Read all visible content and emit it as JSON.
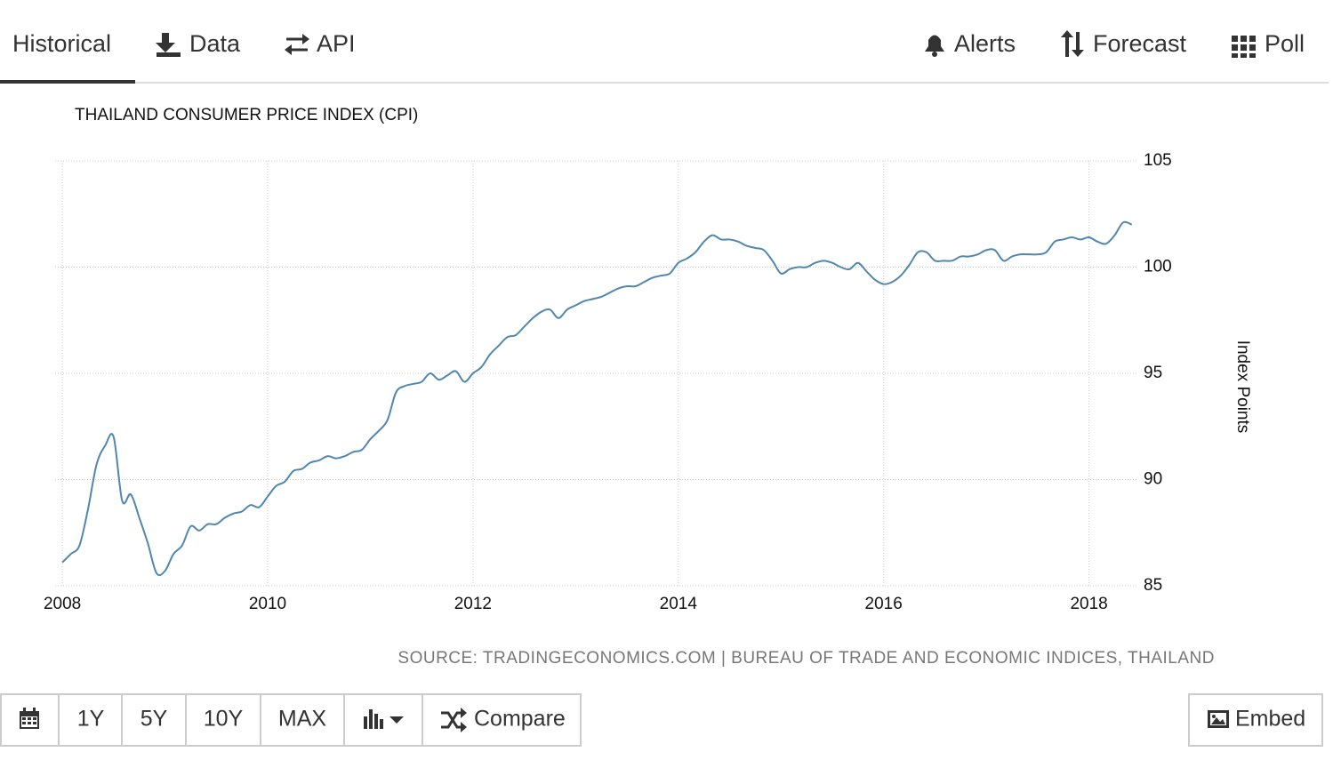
{
  "tabs": [
    "Historical",
    "Data",
    "API",
    "Alerts",
    "Forecast",
    "Poll"
  ],
  "toolbar": [
    "1Y",
    "5Y",
    "10Y",
    "MAX",
    "Compare"
  ],
  "embed": "Embed",
  "chart_data": {
    "type": "line",
    "title": "THAILAND CONSUMER PRICE INDEX (CPI)",
    "y_label": "Index Points",
    "source": "SOURCE: TRADINGECONOMICS.COM | BUREAU OF TRADE AND ECONOMIC INDICES, THAILAND",
    "color": "#4f87b0",
    "grid": true,
    "xlim": [
      2007.93,
      2018.48
    ],
    "ylim": [
      85,
      105
    ],
    "xticks": [
      2008,
      2010,
      2012,
      2014,
      2016,
      2018
    ],
    "yticks": [
      85,
      90,
      95,
      100,
      105
    ],
    "x": [
      2008.0,
      2008.083,
      2008.167,
      2008.25,
      2008.333,
      2008.417,
      2008.5,
      2008.583,
      2008.667,
      2008.75,
      2008.833,
      2008.917,
      2009.0,
      2009.083,
      2009.167,
      2009.25,
      2009.333,
      2009.417,
      2009.5,
      2009.583,
      2009.667,
      2009.75,
      2009.833,
      2009.917,
      2010.0,
      2010.083,
      2010.167,
      2010.25,
      2010.333,
      2010.417,
      2010.5,
      2010.583,
      2010.667,
      2010.75,
      2010.833,
      2010.917,
      2011.0,
      2011.083,
      2011.167,
      2011.25,
      2011.333,
      2011.417,
      2011.5,
      2011.583,
      2011.667,
      2011.75,
      2011.833,
      2011.917,
      2012.0,
      2012.083,
      2012.167,
      2012.25,
      2012.333,
      2012.417,
      2012.5,
      2012.583,
      2012.667,
      2012.75,
      2012.833,
      2012.917,
      2013.0,
      2013.083,
      2013.167,
      2013.25,
      2013.333,
      2013.417,
      2013.5,
      2013.583,
      2013.667,
      2013.75,
      2013.833,
      2013.917,
      2014.0,
      2014.083,
      2014.167,
      2014.25,
      2014.333,
      2014.417,
      2014.5,
      2014.583,
      2014.667,
      2014.75,
      2014.833,
      2014.917,
      2015.0,
      2015.083,
      2015.167,
      2015.25,
      2015.333,
      2015.417,
      2015.5,
      2015.583,
      2015.667,
      2015.75,
      2015.833,
      2015.917,
      2016.0,
      2016.083,
      2016.167,
      2016.25,
      2016.333,
      2016.417,
      2016.5,
      2016.583,
      2016.667,
      2016.75,
      2016.833,
      2016.917,
      2017.0,
      2017.083,
      2017.167,
      2017.25,
      2017.333,
      2017.417,
      2017.5,
      2017.583,
      2017.667,
      2017.75,
      2017.833,
      2017.917,
      2018.0,
      2018.083,
      2018.167,
      2018.25,
      2018.333,
      2018.417
    ],
    "values": [
      86.1,
      86.5,
      86.9,
      88.6,
      90.7,
      91.6,
      92.0,
      89.0,
      89.3,
      88.2,
      87.0,
      85.6,
      85.7,
      86.5,
      86.9,
      87.8,
      87.6,
      87.9,
      87.9,
      88.2,
      88.4,
      88.5,
      88.8,
      88.7,
      89.2,
      89.7,
      89.9,
      90.4,
      90.5,
      90.8,
      90.9,
      91.1,
      91.0,
      91.1,
      91.3,
      91.4,
      91.9,
      92.3,
      92.8,
      94.1,
      94.4,
      94.5,
      94.6,
      95.0,
      94.7,
      94.9,
      95.1,
      94.6,
      95.0,
      95.3,
      95.9,
      96.3,
      96.7,
      96.8,
      97.2,
      97.6,
      97.9,
      98.0,
      97.6,
      98.0,
      98.2,
      98.4,
      98.5,
      98.6,
      98.8,
      99.0,
      99.1,
      99.1,
      99.3,
      99.5,
      99.6,
      99.7,
      100.2,
      100.4,
      100.7,
      101.2,
      101.5,
      101.3,
      101.3,
      101.2,
      101.0,
      100.9,
      100.8,
      100.3,
      99.7,
      99.9,
      100.0,
      100.0,
      100.2,
      100.3,
      100.2,
      100.0,
      99.9,
      100.2,
      99.8,
      99.4,
      99.2,
      99.3,
      99.6,
      100.1,
      100.7,
      100.7,
      100.3,
      100.3,
      100.3,
      100.5,
      100.5,
      100.6,
      100.8,
      100.8,
      100.3,
      100.5,
      100.6,
      100.6,
      100.6,
      100.7,
      101.2,
      101.3,
      101.4,
      101.3,
      101.4,
      101.2,
      101.1,
      101.5,
      102.1,
      102.0
    ]
  }
}
